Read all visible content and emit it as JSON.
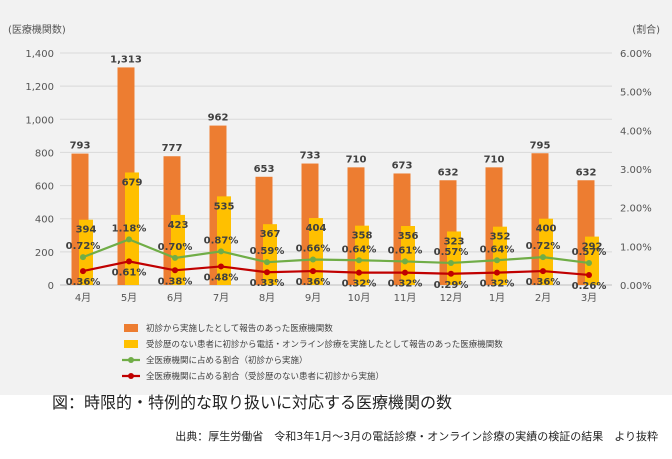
{
  "caption": "図：時限的・特例的な取り扱いに対応する医療機関の数",
  "source": "出典：厚生労働省　令和3年1月～3月の電話診療・オンライン診療の実績の検証の結果　より抜粋",
  "colors": {
    "background": "#f2f2f2",
    "series1": "#ed7d31",
    "series2": "#ffc000",
    "series3": "#70ad47",
    "series4": "#c00000"
  },
  "chart_data": {
    "type": "bar",
    "categories": [
      "4月",
      "5月",
      "6月",
      "7月",
      "8月",
      "9月",
      "10月",
      "11月",
      "12月",
      "1月",
      "2月",
      "3月"
    ],
    "left_axis_unit": "(医療機関数)",
    "right_axis_unit": "(割合)",
    "ylim_left": [
      0,
      1400
    ],
    "ylim_right": [
      0,
      6
    ],
    "yticks_left": [
      "0",
      "200",
      "400",
      "600",
      "800",
      "1,000",
      "1,200",
      "1,400"
    ],
    "yticks_right": [
      "0.00%",
      "1.00%",
      "2.00%",
      "3.00%",
      "4.00%",
      "5.00%",
      "6.00%"
    ],
    "series": [
      {
        "name": "初診から実施したとして報告のあった医療機関数",
        "kind": "bar",
        "axis": "left",
        "color": "#ed7d31",
        "values": [
          793,
          1313,
          777,
          962,
          653,
          733,
          710,
          673,
          632,
          710,
          795,
          632
        ],
        "labels": [
          "793",
          "1,313",
          "777",
          "962",
          "653",
          "733",
          "710",
          "673",
          "632",
          "710",
          "795",
          "632"
        ]
      },
      {
        "name": "受診歴のない患者に初診から電話・オンライン診療を実施したとして報告のあった医療機関数",
        "kind": "bar",
        "axis": "left",
        "color": "#ffc000",
        "values": [
          394,
          679,
          423,
          535,
          367,
          404,
          358,
          356,
          323,
          352,
          400,
          292
        ],
        "labels": [
          "394",
          "679",
          "423",
          "535",
          "367",
          "404",
          "358",
          "356",
          "323",
          "352",
          "400",
          "292"
        ]
      },
      {
        "name": "全医療機関に占める割合（初診から実施）",
        "kind": "line",
        "axis": "right",
        "color": "#70ad47",
        "values": [
          0.72,
          1.18,
          0.7,
          0.87,
          0.59,
          0.66,
          0.64,
          0.61,
          0.57,
          0.64,
          0.72,
          0.57
        ],
        "labels": [
          "0.72%",
          "1.18%",
          "0.70%",
          "0.87%",
          "0.59%",
          "0.66%",
          "0.64%",
          "0.61%",
          "0.57%",
          "0.64%",
          "0.72%",
          "0.57%"
        ]
      },
      {
        "name": "全医療機関に占める割合（受診歴のない患者に初診から実施）",
        "kind": "line",
        "axis": "right",
        "color": "#c00000",
        "values": [
          0.36,
          0.61,
          0.38,
          0.48,
          0.33,
          0.36,
          0.32,
          0.32,
          0.29,
          0.32,
          0.36,
          0.26
        ],
        "labels": [
          "0.36%",
          "0.61%",
          "0.38%",
          "0.48%",
          "0.33%",
          "0.36%",
          "0.32%",
          "0.32%",
          "0.29%",
          "0.32%",
          "0.36%",
          "0.26%"
        ]
      }
    ],
    "legend_position": "bottom-left"
  }
}
